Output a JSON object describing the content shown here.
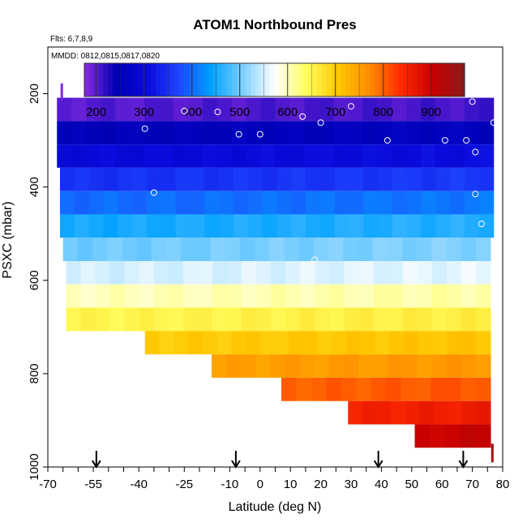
{
  "chart_data": {
    "type": "heatmap",
    "title": "ATOM1 Northbound Pres",
    "notes": {
      "flights": "Flts: 6,7,8,9",
      "dates": "MMDD: 0812,0815,0817,0820"
    },
    "xlabel": "Latitude (deg N)",
    "ylabel": "PSXC (mbar)",
    "xlim": [
      -70,
      80
    ],
    "ylim": [
      1000,
      100
    ],
    "x_tick_labels": [
      "-70",
      "-55",
      "-40",
      "-25",
      "-10",
      "0",
      "10",
      "20",
      "30",
      "40",
      "50",
      "60",
      "70",
      "80"
    ],
    "x_tick_values": [
      -70,
      -55,
      -40,
      -25,
      -10,
      0,
      10,
      20,
      30,
      40,
      50,
      60,
      70,
      80
    ],
    "x_minor_ticks": [
      -65,
      -60,
      -50,
      -45,
      -35,
      -30,
      -20,
      -15,
      -5,
      5,
      15,
      25,
      35,
      45,
      55,
      65,
      75
    ],
    "y_ticks": [
      200,
      400,
      600,
      800,
      1000
    ],
    "colorbar": {
      "ticks": [
        200,
        300,
        400,
        500,
        600,
        700,
        800,
        900
      ],
      "range": [
        175,
        970
      ],
      "colors": [
        "#8a2be2",
        "#0000b4",
        "#0a0adc",
        "#1e46ff",
        "#00a0ff",
        "#7ccfff",
        "#ffffff",
        "#ffff60",
        "#ffc800",
        "#ff8c00",
        "#ff2a00",
        "#c80000",
        "#8b1a1a"
      ]
    },
    "rows": [
      {
        "p": 200,
        "lat_start": -67,
        "lat_end": 77,
        "value": 200
      },
      {
        "p": 250,
        "lat_start": -67,
        "lat_end": 77,
        "value": 250
      },
      {
        "p": 300,
        "lat_start": -67,
        "lat_end": 77,
        "value": 300
      },
      {
        "p": 350,
        "lat_start": -66,
        "lat_end": 77,
        "value": 350
      },
      {
        "p": 400,
        "lat_start": -66,
        "lat_end": 77,
        "value": 400
      },
      {
        "p": 450,
        "lat_start": -66,
        "lat_end": 77,
        "value": 450
      },
      {
        "p": 500,
        "lat_start": -65,
        "lat_end": 76,
        "value": 500
      },
      {
        "p": 550,
        "lat_start": -64,
        "lat_end": 76,
        "value": 550
      },
      {
        "p": 600,
        "lat_start": -64,
        "lat_end": 76,
        "value": 600
      },
      {
        "p": 650,
        "lat_start": -64,
        "lat_end": 76,
        "value": 650
      },
      {
        "p": 700,
        "lat_start": -38,
        "lat_end": 76,
        "value": 700
      },
      {
        "p": 750,
        "lat_start": -16,
        "lat_end": 76,
        "value": 750
      },
      {
        "p": 800,
        "lat_start": 7,
        "lat_end": 76,
        "value": 800
      },
      {
        "p": 850,
        "lat_start": 29,
        "lat_end": 76,
        "value": 850
      },
      {
        "p": 900,
        "lat_start": 51,
        "lat_end": 76,
        "value": 900
      }
    ],
    "observations": [
      {
        "lat": -38,
        "p": 275
      },
      {
        "lat": -25,
        "p": 237
      },
      {
        "lat": -14,
        "p": 239
      },
      {
        "lat": -7,
        "p": 287
      },
      {
        "lat": 0,
        "p": 287
      },
      {
        "lat": 14,
        "p": 249
      },
      {
        "lat": 20,
        "p": 262
      },
      {
        "lat": 30,
        "p": 227
      },
      {
        "lat": 42,
        "p": 300
      },
      {
        "lat": 61,
        "p": 300
      },
      {
        "lat": 68,
        "p": 300
      },
      {
        "lat": 70,
        "p": 217
      },
      {
        "lat": 71,
        "p": 325
      },
      {
        "lat": 77,
        "p": 262
      },
      {
        "lat": -35,
        "p": 412
      },
      {
        "lat": 71,
        "p": 415
      },
      {
        "lat": 73,
        "p": 479
      },
      {
        "lat": 18,
        "p": 556
      }
    ],
    "arrows_lat": [
      -54,
      -8,
      39,
      67
    ]
  }
}
